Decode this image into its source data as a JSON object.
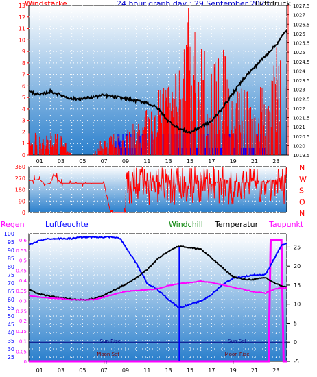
{
  "header": {
    "left_label": "Windstärke",
    "title": "24 hour graph day : 29 September 2023",
    "right_label": "Luftdruck"
  },
  "labels": {
    "regen": "Regen",
    "luftfeuchte": "Luftfeuchte",
    "windchill": "Windchill",
    "temperatur": "Temperatur",
    "taupunkt": "Taupunkt",
    "sun_rise": "Sun Rise",
    "sun_set": "Sun Set",
    "moon_set": "Moon Set",
    "moon_rise": "Moon Rise"
  },
  "colors": {
    "wind_red": "#ff0000",
    "gust_blue": "#0000ff",
    "pressure": "#000000",
    "humidity": "#0000ff",
    "temperature": "#000000",
    "dewpoint": "#ff00ff",
    "windchill": "#008000",
    "sky_top": "#ffffff",
    "sky_bottom": "#2a7fcc"
  },
  "chart_data": [
    {
      "type": "bar",
      "id": "wind_pressure",
      "x_ticks": [
        "01",
        "03",
        "05",
        "07",
        "09",
        "11",
        "13",
        "15",
        "17",
        "19",
        "21",
        "23"
      ],
      "x_range": [
        0,
        24
      ],
      "y_left_ticks": [
        "0",
        "1",
        "2",
        "3",
        "4",
        "5",
        "6",
        "7",
        "8",
        "9",
        "10",
        "11",
        "12",
        "13"
      ],
      "y_left_range": [
        0,
        13
      ],
      "y_right_ticks": [
        "1019.5",
        "1020",
        "1020.5",
        "1021",
        "1021.5",
        "1022",
        "1022.5",
        "1023",
        "1023.5",
        "1024",
        "1024.5",
        "1025",
        "1025.5",
        "1026",
        "1026.5",
        "1027",
        "1027.5"
      ],
      "y_right_range": [
        1019.5,
        1027.5
      ],
      "series": [
        {
          "name": "Windstärke",
          "axis": "left",
          "x": [
            0,
            1,
            2,
            3,
            4,
            5,
            6,
            7,
            8,
            9,
            10,
            11,
            12,
            13,
            14,
            15,
            16,
            17,
            18,
            19,
            20,
            21,
            22,
            23,
            23.5,
            24
          ],
          "y": [
            1.8,
            1.8,
            1.8,
            1.8,
            0,
            0,
            0,
            1.8,
            1.8,
            1.8,
            3.6,
            3.6,
            5.4,
            5.4,
            7.2,
            12.9,
            9.0,
            7.2,
            9.0,
            5.4,
            5.4,
            5.4,
            5.4,
            9.0,
            9.0,
            5.4
          ]
        },
        {
          "name": "Luftdruck",
          "axis": "right",
          "x": [
            0,
            1,
            2,
            3,
            4,
            5,
            6,
            7,
            8,
            9,
            10,
            11,
            12,
            13,
            14,
            15,
            16,
            17,
            18,
            19,
            20,
            21,
            22,
            23,
            24
          ],
          "y": [
            1022.9,
            1022.7,
            1022.9,
            1022.7,
            1022.5,
            1022.5,
            1022.6,
            1022.7,
            1022.6,
            1022.5,
            1022.4,
            1022.3,
            1022.0,
            1021.3,
            1020.9,
            1020.7,
            1021.0,
            1021.3,
            1022.0,
            1022.8,
            1023.6,
            1024.2,
            1024.8,
            1025.4,
            1026.2
          ]
        }
      ]
    },
    {
      "type": "line",
      "id": "wind_direction",
      "x_range": [
        0,
        24
      ],
      "y_left_ticks": [
        "0",
        "90",
        "180",
        "270",
        "360"
      ],
      "y_range": [
        0,
        360
      ],
      "y_right_ticks": [
        "N",
        "W",
        "S",
        "O",
        "N"
      ],
      "series": [
        {
          "name": "Windrichtung",
          "x": [
            0,
            1,
            1.5,
            2,
            2.3,
            3,
            4,
            5,
            6,
            7,
            7.6,
            8,
            9,
            10,
            11,
            12,
            13,
            14,
            15,
            16,
            17,
            18,
            19,
            20,
            21,
            22,
            23,
            24
          ],
          "y": [
            250,
            260,
            220,
            230,
            300,
            230,
            230,
            230,
            230,
            230,
            0,
            0,
            0,
            220,
            250,
            240,
            230,
            240,
            230,
            240,
            220,
            260,
            250,
            230,
            250,
            240,
            260,
            300
          ]
        }
      ]
    },
    {
      "type": "line",
      "id": "temp_humidity",
      "x_ticks": [
        "01",
        "03",
        "05",
        "07",
        "09",
        "11",
        "13",
        "15",
        "17",
        "19",
        "21",
        "23"
      ],
      "x_range": [
        0,
        24
      ],
      "rain_ticks": [
        "0",
        "0.05",
        "0.1",
        "0.15",
        "0.2",
        "0.25",
        "0.3",
        "0.35",
        "0.4",
        "0.45",
        "0.5",
        "0.55",
        "0.6"
      ],
      "rain_range": [
        0,
        0.6
      ],
      "humidity_ticks": [
        "25",
        "30",
        "35",
        "40",
        "45",
        "50",
        "55",
        "60",
        "65",
        "70",
        "75",
        "80",
        "85",
        "90",
        "95",
        "100"
      ],
      "humidity_range": [
        22.5,
        100
      ],
      "temp_ticks": [
        "-5",
        "0",
        "5",
        "10",
        "15",
        "20",
        "25"
      ],
      "temp_range": [
        -5,
        28.5
      ],
      "series": [
        {
          "name": "Luftfeuchte",
          "axis": "humidity",
          "x": [
            0,
            1,
            2,
            3,
            4,
            5,
            6,
            7,
            8,
            8.5,
            9,
            10,
            11,
            12,
            13,
            14,
            15,
            16,
            17,
            18,
            19,
            20,
            21,
            22,
            23,
            23.5,
            24
          ],
          "y": [
            93,
            96,
            97,
            97,
            97,
            98,
            98,
            98,
            98,
            97,
            92,
            82,
            70,
            66,
            60,
            55,
            57,
            59,
            63,
            69,
            73,
            74,
            75,
            75,
            87,
            93,
            94
          ]
        },
        {
          "name": "Temperatur",
          "axis": "temp",
          "x": [
            0,
            1,
            2,
            3,
            4,
            5,
            6,
            7,
            8,
            9,
            10,
            11,
            12,
            13,
            14,
            15,
            16,
            17,
            18,
            19,
            20,
            21,
            22,
            23,
            24
          ],
          "y": [
            13.8,
            12.6,
            12.1,
            11.6,
            11.3,
            11.1,
            11.4,
            12.3,
            13.8,
            15.2,
            16.9,
            19.1,
            21.9,
            24.0,
            25.3,
            24.8,
            24.5,
            22.1,
            19.6,
            17.2,
            16.5,
            16.5,
            17.0,
            15.3,
            14.4
          ]
        },
        {
          "name": "Taupunkt",
          "axis": "temp",
          "x": [
            0,
            1,
            2,
            3,
            4,
            5,
            6,
            7,
            8,
            9,
            10,
            11,
            12,
            13,
            14,
            15,
            16,
            17,
            18,
            19,
            20,
            21,
            22,
            23,
            24
          ],
          "y": [
            12.3,
            11.8,
            11.6,
            11.4,
            11.2,
            11.1,
            11.2,
            11.8,
            12.7,
            13.3,
            13.6,
            13.8,
            14.1,
            14.9,
            15.4,
            15.7,
            16.0,
            15.7,
            15.1,
            14.4,
            13.9,
            13.2,
            12.9,
            14.1,
            14.3
          ]
        },
        {
          "name": "Regen",
          "axis": "rain",
          "x": [
            0,
            22.3,
            22.5,
            23.5,
            23.7,
            24
          ],
          "y": [
            0,
            0,
            0.6,
            0.6,
            0,
            0
          ]
        }
      ],
      "events": [
        {
          "label": "Sun Rise",
          "x": 7.2
        },
        {
          "label": "Sun Set",
          "x": 19.0
        },
        {
          "label": "Moon Set",
          "x": 7.0
        },
        {
          "label": "Moon Rise",
          "x": 19.0
        }
      ]
    }
  ]
}
